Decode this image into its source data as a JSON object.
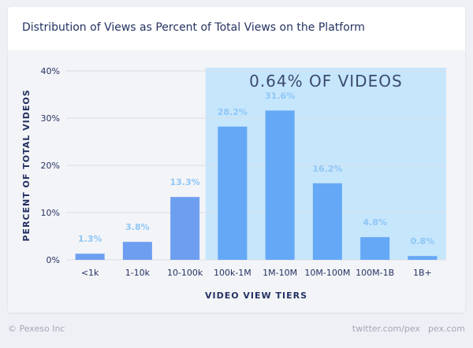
{
  "title": "Distribution of Views as Percent of Total Views on the Platform",
  "chart_data": {
    "type": "bar",
    "categories": [
      "<1k",
      "1-10k",
      "10-100k",
      "100k-1M",
      "1M-10M",
      "10M-100M",
      "100M-1B",
      "1B+"
    ],
    "values": [
      1.3,
      3.8,
      13.3,
      28.2,
      31.6,
      16.2,
      4.8,
      0.8
    ],
    "data_labels": [
      "1.3%",
      "3.8%",
      "13.3%",
      "28.2%",
      "31.6%",
      "16.2%",
      "4.8%",
      "0.8%"
    ],
    "xlabel": "VIDEO VIEW TIERS",
    "ylabel": "PERCENT OF TOTAL VIDEOS",
    "ylim": [
      0,
      40
    ],
    "yticks": [
      0,
      10,
      20,
      30,
      40
    ],
    "ytick_labels": [
      "0%",
      "10%",
      "20%",
      "30%",
      "40%"
    ],
    "grid": true,
    "highlight": {
      "label": "0.64% OF VIDEOS",
      "from_category": "100k-1M",
      "to_category": "1B+"
    },
    "colors": {
      "bar": "#64a8f6",
      "bar_outside": "#6e9ef0",
      "highlight_fill": "#c6e6fc",
      "data_label": "#8fc6f6",
      "text": "#243262",
      "grid": "#d9dde6"
    }
  },
  "footer": {
    "copyright": "© Pexeso Inc",
    "twitter": "twitter.com/pex",
    "site": "pex.com"
  }
}
